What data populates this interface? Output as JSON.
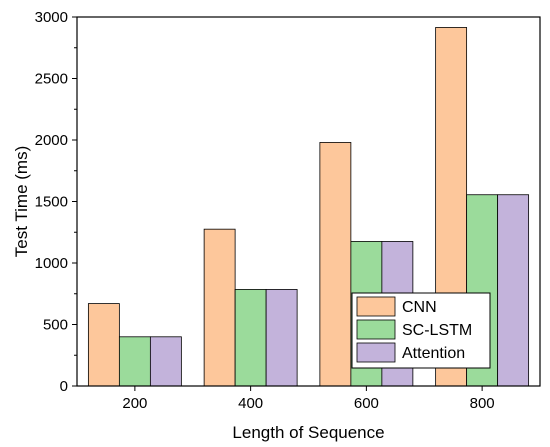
{
  "chart_data": {
    "type": "bar",
    "title": "",
    "xlabel": "Length of Sequence",
    "ylabel": "Test Time (ms)",
    "categories": [
      "200",
      "400",
      "600",
      "800"
    ],
    "ylim": [
      0,
      3000
    ],
    "yticks": [
      "0",
      "500",
      "1000",
      "1500",
      "2000",
      "2500",
      "3000"
    ],
    "grid": false,
    "legend_position": "bottom-right",
    "series": [
      {
        "name": "CNN",
        "color": "#FDC79B",
        "values": [
          670,
          1275,
          1980,
          2915
        ]
      },
      {
        "name": "SC-LSTM",
        "color": "#9BDB9B",
        "values": [
          400,
          785,
          1175,
          1555
        ]
      },
      {
        "name": "Attention",
        "color": "#C3B3DB",
        "values": [
          400,
          785,
          1175,
          1555
        ]
      }
    ]
  }
}
